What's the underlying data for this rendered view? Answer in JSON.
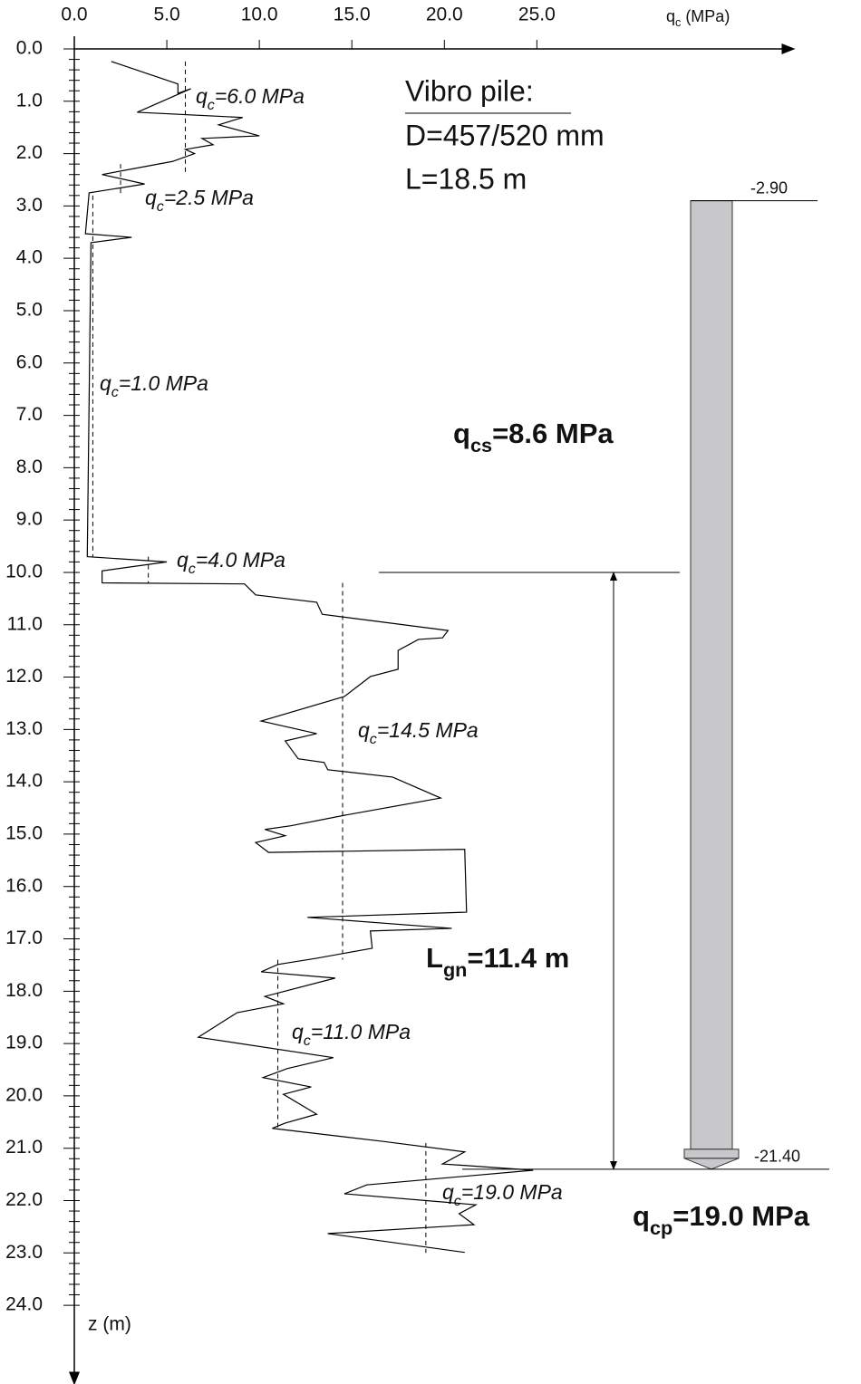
{
  "chart_data": {
    "type": "line",
    "x_label": {
      "symbol": "q",
      "sub": "c",
      "rest": " (MPa)"
    },
    "y_label": "z (m)",
    "xlim": [
      0,
      38.6
    ],
    "ylim": [
      0,
      25.4
    ],
    "xticks": [
      {
        "value": 0,
        "label": "0.0"
      },
      {
        "value": 5,
        "label": "5.0"
      },
      {
        "value": 10,
        "label": "10.0"
      },
      {
        "value": 15,
        "label": "15.0"
      },
      {
        "value": 20,
        "label": "20.0"
      },
      {
        "value": 25,
        "label": "25.0"
      }
    ],
    "yticks": [
      {
        "value": 0,
        "label": "0.0"
      },
      {
        "value": 1,
        "label": "1.0"
      },
      {
        "value": 2,
        "label": "2.0"
      },
      {
        "value": 3,
        "label": "3.0"
      },
      {
        "value": 4,
        "label": "4.0"
      },
      {
        "value": 5,
        "label": "5.0"
      },
      {
        "value": 6,
        "label": "6.0"
      },
      {
        "value": 7,
        "label": "7.0"
      },
      {
        "value": 8,
        "label": "8.0"
      },
      {
        "value": 9,
        "label": "9.0"
      },
      {
        "value": 10,
        "label": "10.0"
      },
      {
        "value": 11,
        "label": "11.0"
      },
      {
        "value": 12,
        "label": "12.0"
      },
      {
        "value": 13,
        "label": "13.0"
      },
      {
        "value": 14,
        "label": "14.0"
      },
      {
        "value": 15,
        "label": "15.0"
      },
      {
        "value": 16,
        "label": "16.0"
      },
      {
        "value": 17,
        "label": "17.0"
      },
      {
        "value": 18,
        "label": "18.0"
      },
      {
        "value": 19,
        "label": "19.0"
      },
      {
        "value": 20,
        "label": "20.0"
      },
      {
        "value": 21,
        "label": "21.0"
      },
      {
        "value": 22,
        "label": "22.0"
      },
      {
        "value": 23,
        "label": "23.0"
      },
      {
        "value": 24,
        "label": "24.0"
      }
    ],
    "series": [
      {
        "color": "#000000",
        "depth": [
          0.24,
          0.67,
          0.85,
          0.76,
          1.21,
          1.31,
          1.45,
          1.66,
          1.71,
          1.83,
          1.92,
          2.0,
          2.15,
          2.4,
          2.58,
          2.75,
          3.53,
          3.6,
          3.7,
          9.7,
          9.8,
          9.97,
          10.2,
          10.22,
          10.43,
          10.57,
          10.8,
          11.11,
          11.25,
          11.28,
          11.49,
          11.85,
          11.99,
          12.37,
          12.84,
          13.08,
          13.22,
          13.56,
          13.63,
          13.77,
          13.91,
          14.31,
          14.64,
          14.84,
          14.91,
          15.03,
          15.16,
          15.35,
          15.29,
          16.49,
          16.59,
          16.8,
          16.85,
          17.18,
          17.37,
          17.49,
          17.63,
          17.75,
          18.1,
          18.24,
          18.41,
          18.88,
          19.27,
          19.48,
          19.65,
          19.83,
          19.97,
          20.35,
          20.52,
          20.62,
          20.87,
          21.07,
          21.3,
          21.42,
          21.7,
          21.87,
          22.08,
          22.25,
          22.46,
          22.63,
          22.99
        ],
        "values": [
          2.0,
          5.6,
          5.6,
          6.3,
          3.4,
          9.1,
          7.8,
          10.0,
          6.9,
          7.5,
          6.0,
          6.5,
          5.3,
          1.5,
          3.8,
          0.8,
          0.6,
          3.1,
          0.9,
          0.7,
          5.0,
          1.5,
          1.5,
          9.2,
          9.8,
          13.1,
          13.4,
          20.2,
          19.9,
          18.6,
          17.5,
          17.5,
          16.0,
          14.6,
          10.1,
          13.1,
          11.4,
          12.1,
          13.5,
          13.7,
          17.2,
          19.8,
          14.6,
          11.7,
          10.3,
          11.4,
          9.8,
          10.5,
          21.1,
          21.2,
          12.6,
          20.4,
          16.0,
          16.1,
          13.1,
          11.0,
          10.1,
          14.1,
          10.3,
          11.3,
          8.8,
          6.7,
          14.0,
          11.5,
          10.2,
          12.8,
          11.3,
          13.1,
          11.4,
          10.7,
          16.7,
          21.1,
          19.9,
          24.8,
          15.8,
          14.6,
          21.7,
          20.8,
          21.6,
          13.7,
          21.1
        ]
      }
    ],
    "averages": [
      {
        "value": 6.0,
        "top": 0.24,
        "bottom": 2.4,
        "symbol": "q",
        "sub": "c",
        "rest": "=6.0 MPa"
      },
      {
        "value": 2.5,
        "top": 2.2,
        "bottom": 2.8,
        "symbol": "q",
        "sub": "c",
        "rest": "=2.5 MPa"
      },
      {
        "value": 1.0,
        "top": 2.8,
        "bottom": 9.7,
        "symbol": "q",
        "sub": "c",
        "rest": "=1.0 MPa"
      },
      {
        "value": 4.0,
        "top": 9.7,
        "bottom": 10.2,
        "symbol": "q",
        "sub": "c",
        "rest": "=4.0 MPa"
      },
      {
        "value": 14.5,
        "top": 10.2,
        "bottom": 17.4,
        "symbol": "q",
        "sub": "c",
        "rest": "=14.5 MPa"
      },
      {
        "value": 11.0,
        "top": 17.4,
        "bottom": 20.6,
        "symbol": "q",
        "sub": "c",
        "rest": "=11.0 MPa"
      },
      {
        "value": 19.0,
        "top": 20.9,
        "bottom": 23.0,
        "symbol": "q",
        "sub": "c",
        "rest": "=19.0 MPa"
      }
    ],
    "pile_title": "Vibro pile:",
    "pile_lines": [
      "D=457/520 mm",
      "L=18.5 m"
    ],
    "pile": {
      "top": -2.9,
      "top_label": "-2.90",
      "tip": -21.4,
      "tip_label": "-21.40"
    },
    "qcs": {
      "symbol": "q",
      "sub": "cs",
      "rest": "=8.6 MPa"
    },
    "lgn": {
      "value": 11.4,
      "symbol": "L",
      "sub": "gn",
      "rest": "=11.4 m"
    },
    "qcp": {
      "symbol": "q",
      "sub": "cp",
      "rest": "=19.0 MPa"
    }
  }
}
